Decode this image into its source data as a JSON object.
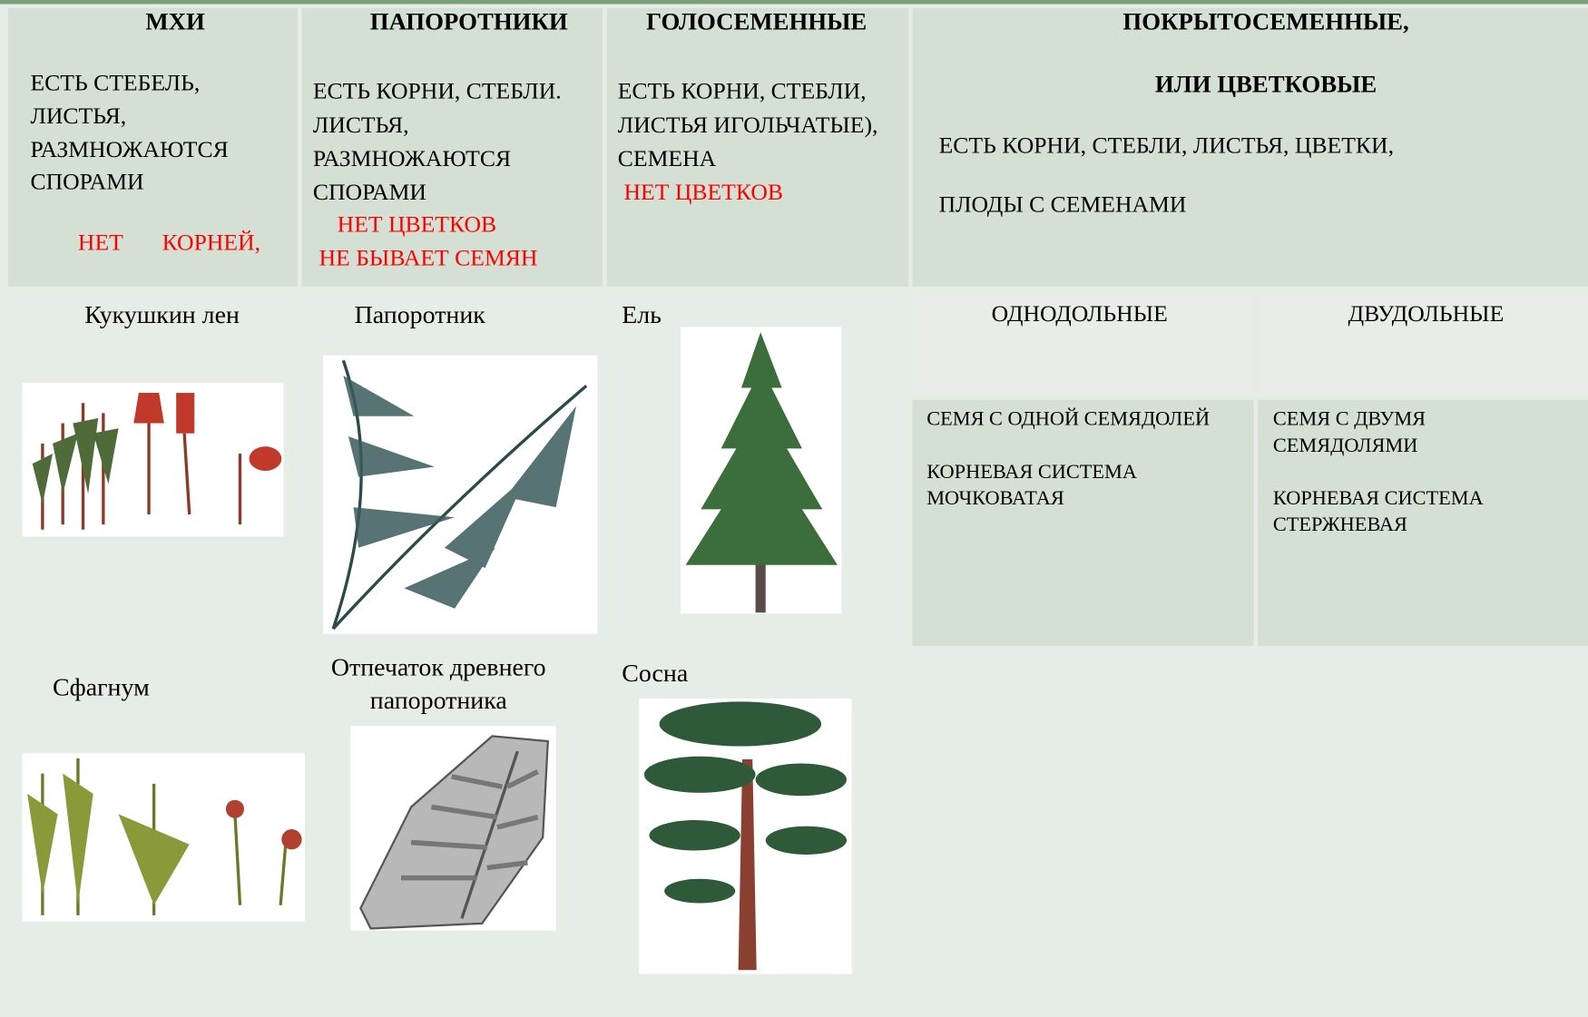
{
  "columns": [
    {
      "title": [
        "МХИ"
      ],
      "description": [
        "ЕСТЬ СТЕБЕЛЬ,",
        "ЛИСТЬЯ,",
        "РАЗМНОЖАЮТСЯ",
        "СПОРАМИ"
      ],
      "missing": [
        "НЕТ",
        "КОРНЕЙ,"
      ]
    },
    {
      "title": [
        "ПАПОРОТНИКИ"
      ],
      "description": [
        "ЕСТЬ КОРНИ,  СТЕБЛИ.",
        "ЛИСТЬЯ,",
        "РАЗМНОЖАЮТСЯ",
        "СПОРАМИ"
      ],
      "missing": [
        "НЕТ ЦВЕТКОВ",
        "НЕ БЫВАЕТ СЕМЯН"
      ]
    },
    {
      "title": [
        "ГОЛОСЕМЕННЫЕ"
      ],
      "description": [
        "ЕСТЬ КОРНИ, СТЕБЛИ,",
        "ЛИСТЬЯ ИГОЛЬЧАТЫЕ),",
        "СЕМЕНА"
      ],
      "missing": [
        "НЕТ ЦВЕТКОВ"
      ]
    },
    {
      "title": [
        "ПОКРЫТОСЕМЕННЫЕ,",
        "ИЛИ  ЦВЕТКОВЫЕ"
      ],
      "description": [
        "ЕСТЬ КОРНИ,  СТЕБЛИ,  ЛИСТЬЯ, ЦВЕТКИ,",
        "ПЛОДЫ С СЕМЕНАМИ"
      ]
    }
  ],
  "examples": [
    [
      "Кукушкин  лен",
      "Папоротник",
      "Ель"
    ],
    [
      "Сфагнум",
      "Отпечаток древнего папоротника",
      "Сосна"
    ]
  ],
  "angiosperm_classes": [
    {
      "name": "ОДНОДОЛЬНЫЕ",
      "description": [
        "СЕМЯ  С ОДНОЙ  СЕМЯДОЛЕЙ",
        "КОРНЕВАЯ СИСТЕМА",
        "МОЧКОВАТАЯ"
      ]
    },
    {
      "name": "ДВУДОЛЬНЫЕ",
      "description": [
        "СЕМЯ С ДВУМЯ",
        "СЕМЯДОЛЯМИ",
        "КОРНЕВАЯ СИСТЕМА",
        "СТЕРЖНЕВАЯ"
      ]
    }
  ]
}
